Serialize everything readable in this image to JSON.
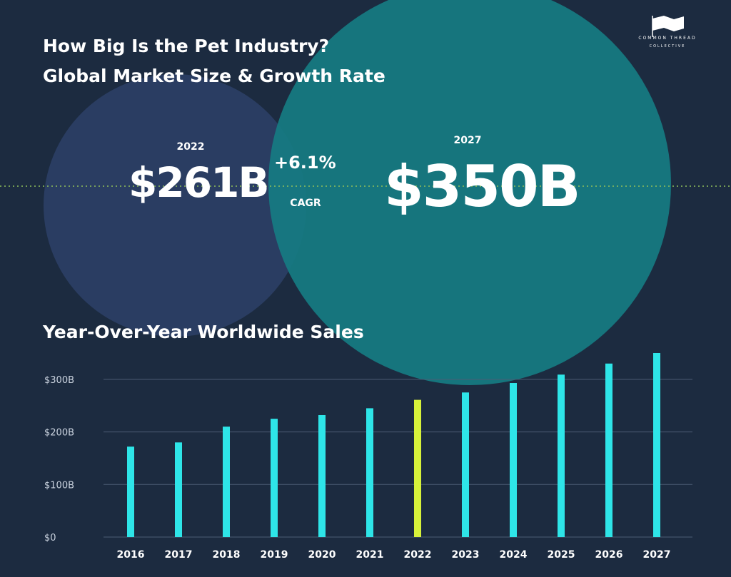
{
  "header": {
    "title_line1": "How Big Is the Pet Industry?",
    "title_line2": "Global Market Size & Growth Rate"
  },
  "logo": {
    "line1": "COMMON THREAD",
    "line2": "COLLECTIVE"
  },
  "market": {
    "year_start": "2022",
    "value_start": "$261B",
    "cagr_value": "+6.1%",
    "cagr_label": "CAGR",
    "year_end": "2027",
    "value_end": "$350B"
  },
  "section_title": "Year-Over-Year Worldwide Sales",
  "colors": {
    "background": "#1c2b40",
    "circle_left": "#2b3e64",
    "circle_right": "#157b82",
    "bar": "#2ee5e8",
    "bar_highlight": "#d7f23a",
    "gridline": "#4d5c74",
    "dotted_line": "#8fbf5a"
  },
  "chart_data": {
    "type": "bar",
    "title": "Year-Over-Year Worldwide Sales",
    "categories": [
      "2016",
      "2017",
      "2018",
      "2019",
      "2020",
      "2021",
      "2022",
      "2023",
      "2024",
      "2025",
      "2026",
      "2027"
    ],
    "values": [
      172,
      180,
      210,
      225,
      232,
      245,
      261,
      275,
      293,
      309,
      330,
      350
    ],
    "highlight_category": "2022",
    "ylim": [
      0,
      350
    ],
    "yticks": [
      0,
      100,
      200,
      300
    ],
    "ytick_labels": [
      "$0",
      "$100B",
      "$200B",
      "$300B"
    ],
    "grid": true,
    "xlabel": "",
    "ylabel": ""
  }
}
